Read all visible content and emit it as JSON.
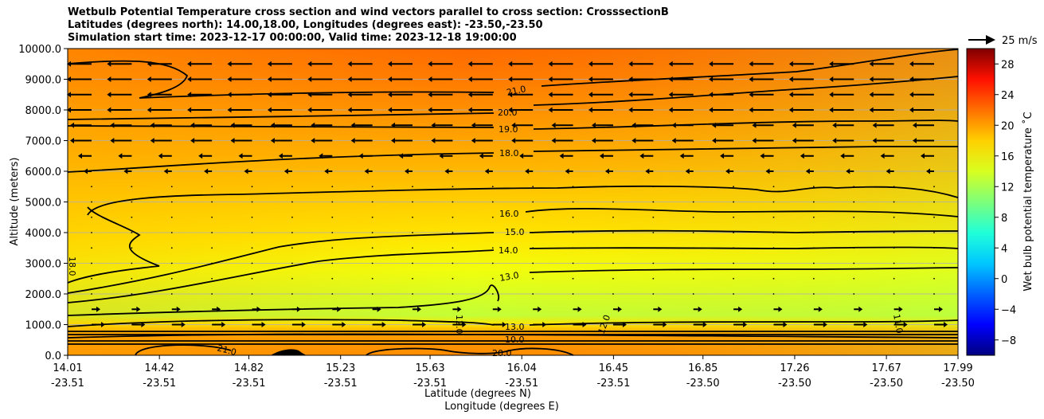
{
  "chart_data": {
    "type": "heatmap",
    "title_lines": [
      "Wetbulb Potential Temperature cross section and wind vectors parallel to cross section: CrosssectionB",
      "Latitudes (degrees north): 14.00,18.00, Longitudes (degrees east): -23.50,-23.50",
      "Simulation start time: 2023-12-17 00:00:00, Valid time: 2023-12-18 19:00:00"
    ],
    "ylabel": "Altitude (meters)",
    "xlabel": "Latitude (degrees N)",
    "xlabel2": "Longitude (degrees E)",
    "ylim": [
      0,
      10000
    ],
    "yticks": [
      "0.0",
      "1000.0",
      "2000.0",
      "3000.0",
      "4000.0",
      "5000.0",
      "6000.0",
      "7000.0",
      "8000.0",
      "9000.0",
      "10000.0"
    ],
    "xticks_lat": [
      "14.01",
      "14.42",
      "14.82",
      "15.23",
      "15.63",
      "16.04",
      "16.45",
      "16.85",
      "17.26",
      "17.67",
      "17.99"
    ],
    "xticks_lon": [
      "-23.51",
      "-23.51",
      "-23.51",
      "-23.51",
      "-23.51",
      "-23.51",
      "-23.51",
      "-23.50",
      "-23.50",
      "-23.50",
      "-23.50"
    ],
    "colorbar": {
      "label": "Wet bulb potential temperature ˚C",
      "range": [
        -10,
        30
      ],
      "ticks": [
        "−8",
        "−4",
        "0",
        "4",
        "8",
        "12",
        "16",
        "20",
        "24",
        "28"
      ]
    },
    "quiver_key": "25 m/s",
    "contours": [
      {
        "level": 21.0,
        "label": "21.0"
      },
      {
        "level": 20.0,
        "label": "20.0"
      },
      {
        "level": 19.0,
        "label": "19.0"
      },
      {
        "level": 18.0,
        "label": "18.0"
      },
      {
        "level": 16.0,
        "label": "16.0"
      },
      {
        "level": 15.0,
        "label": "15.0"
      },
      {
        "level": 14.0,
        "label": "14.0"
      },
      {
        "level": 13.0,
        "label": "13.0"
      },
      {
        "level": 12.0,
        "label": "12.0"
      },
      {
        "level": 11.0,
        "label": "11.0"
      },
      {
        "level": 10.0,
        "label": "10.0"
      }
    ],
    "contour_labels_extra": [
      "18.0",
      "21.0",
      "20.0",
      "12.0",
      "12.0",
      "11.0",
      "13.0",
      "14.0",
      "16.0"
    ]
  }
}
